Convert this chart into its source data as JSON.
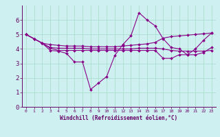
{
  "xlabel": "Windchill (Refroidissement éolien,°C)",
  "bg_color": "#cef0f0",
  "line_color": "#880088",
  "grid_color": "#aaddcc",
  "xlim": [
    -0.5,
    23.5
  ],
  "ylim": [
    0,
    7
  ],
  "xticks": [
    0,
    1,
    2,
    3,
    4,
    5,
    6,
    7,
    8,
    9,
    10,
    11,
    12,
    13,
    14,
    15,
    16,
    17,
    18,
    19,
    20,
    21,
    22,
    23
  ],
  "yticks": [
    0,
    1,
    2,
    3,
    4,
    5,
    6
  ],
  "lines": [
    [
      5.0,
      4.7,
      4.4,
      3.9,
      3.85,
      3.7,
      3.1,
      3.1,
      1.2,
      1.65,
      2.1,
      3.55,
      4.3,
      4.9,
      6.5,
      6.0,
      5.6,
      4.7,
      4.1,
      4.0,
      3.6,
      4.0,
      4.6,
      5.1
    ],
    [
      5.0,
      4.7,
      4.4,
      4.3,
      4.25,
      4.2,
      4.2,
      4.2,
      4.15,
      4.15,
      4.15,
      4.15,
      4.2,
      4.25,
      4.3,
      4.35,
      4.45,
      4.75,
      4.85,
      4.9,
      4.95,
      5.0,
      5.05,
      5.1
    ],
    [
      5.0,
      4.7,
      4.4,
      4.1,
      4.05,
      4.05,
      4.05,
      4.05,
      4.0,
      4.0,
      4.0,
      4.0,
      4.0,
      4.0,
      4.05,
      4.05,
      4.05,
      4.0,
      3.9,
      3.85,
      3.85,
      3.85,
      3.85,
      3.9
    ],
    [
      5.0,
      4.7,
      4.4,
      4.05,
      3.9,
      3.9,
      3.9,
      3.9,
      3.9,
      3.9,
      3.9,
      3.9,
      3.9,
      3.9,
      3.9,
      3.9,
      3.9,
      3.35,
      3.35,
      3.6,
      3.6,
      3.6,
      3.75,
      4.1
    ]
  ]
}
